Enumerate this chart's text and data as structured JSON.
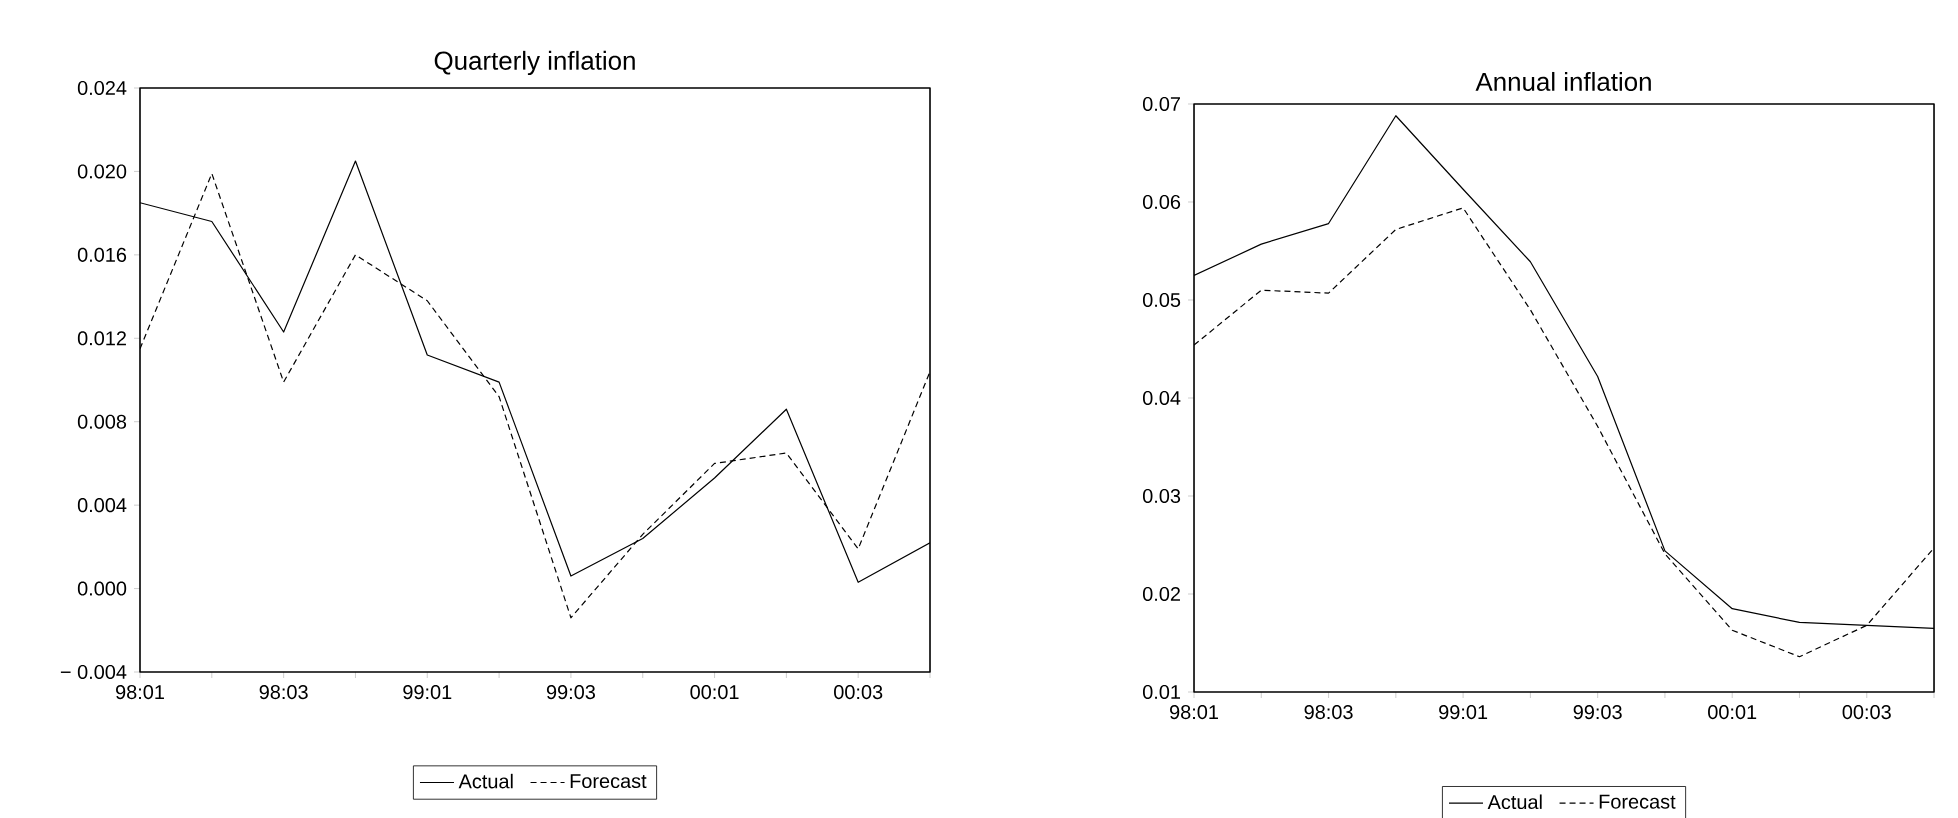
{
  "chart_data": [
    {
      "type": "line",
      "title": "Quarterly inflation",
      "categories": [
        "98:01",
        null,
        "98:03",
        null,
        "99:01",
        null,
        "99:03",
        null,
        "00:01",
        null,
        "00:03",
        null
      ],
      "series": [
        {
          "name": "Actual",
          "color": "#000000",
          "line_style": "solid",
          "values": [
            0.0185,
            0.0176,
            0.0123,
            0.0205,
            0.0112,
            0.0099,
            0.0006,
            0.0024,
            0.0053,
            0.0086,
            0.0003,
            0.0022
          ]
        },
        {
          "name": "Forecast",
          "color": "#000000",
          "line_style": "dashed",
          "values": [
            0.0115,
            0.0199,
            0.0099,
            0.016,
            0.0138,
            0.0092,
            -0.0014,
            0.0026,
            0.006,
            0.0065,
            0.0019,
            0.0104
          ]
        }
      ],
      "ylim": [
        -0.004,
        0.024
      ],
      "yticks": [
        {
          "value": -0.004,
          "label": "− 0.004"
        },
        {
          "value": 0.0,
          "label": "0.000"
        },
        {
          "value": 0.004,
          "label": "0.004"
        },
        {
          "value": 0.008,
          "label": "0.008"
        },
        {
          "value": 0.012,
          "label": "0.012"
        },
        {
          "value": 0.016,
          "label": "0.016"
        },
        {
          "value": 0.02,
          "label": "0.020"
        },
        {
          "value": 0.024,
          "label": "0.024"
        }
      ],
      "grid": false,
      "legend": "bottom"
    },
    {
      "type": "line",
      "title": "Annual inflation",
      "categories": [
        "98:01",
        null,
        "98:03",
        null,
        "99:01",
        null,
        "99:03",
        null,
        "00:01",
        null,
        "00:03",
        null
      ],
      "series": [
        {
          "name": "Actual",
          "color": "#000000",
          "line_style": "solid",
          "values": [
            0.0525,
            0.0557,
            0.0578,
            0.0688,
            0.0613,
            0.0539,
            0.0422,
            0.0244,
            0.0185,
            0.0171,
            0.0168,
            0.0165
          ]
        },
        {
          "name": "Forecast",
          "color": "#000000",
          "line_style": "dashed",
          "values": [
            0.0454,
            0.051,
            0.0507,
            0.0572,
            0.0594,
            0.049,
            0.0371,
            0.0241,
            0.0163,
            0.0136,
            0.0168,
            0.0247
          ]
        }
      ],
      "ylim": [
        0.01,
        0.07
      ],
      "yticks": [
        0.01,
        0.02,
        0.03,
        0.04,
        0.05,
        0.06,
        0.07
      ],
      "grid": false,
      "legend": "bottom"
    }
  ]
}
